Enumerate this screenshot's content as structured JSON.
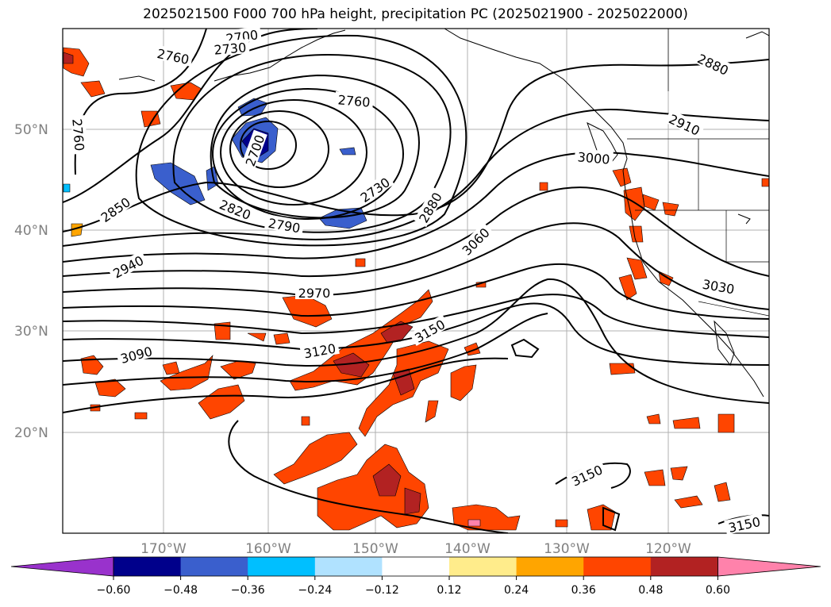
{
  "title": "2025021500 F000 700 hPa height, precipitation PC (2025021900 - 2025022000)",
  "map": {
    "lat_labels": [
      "50°N",
      "40°N",
      "30°N",
      "20°N"
    ],
    "lon_labels": [
      "170°W",
      "160°W",
      "150°W",
      "140°W",
      "130°W",
      "120°W"
    ],
    "contour_labels": [
      {
        "text": "2700"
      },
      {
        "text": "2730"
      },
      {
        "text": "2760"
      },
      {
        "text": "2880"
      },
      {
        "text": "2760"
      },
      {
        "text": "2760"
      },
      {
        "text": "2910"
      },
      {
        "text": "2700"
      },
      {
        "text": "3000"
      },
      {
        "text": "2730"
      },
      {
        "text": "2850"
      },
      {
        "text": "2820"
      },
      {
        "text": "2790"
      },
      {
        "text": "2880"
      },
      {
        "text": "3060"
      },
      {
        "text": "2940"
      },
      {
        "text": "3030"
      },
      {
        "text": "2970"
      },
      {
        "text": "3150"
      },
      {
        "text": "3120"
      },
      {
        "text": "3090"
      },
      {
        "text": "3150"
      },
      {
        "text": "3150"
      }
    ]
  },
  "colorbar": {
    "ticks": [
      "−0.60",
      "−0.48",
      "−0.36",
      "−0.24",
      "−0.12",
      "0.12",
      "0.24",
      "0.36",
      "0.48",
      "0.60"
    ],
    "colors": [
      "#9932cc",
      "#00008b",
      "#3a5fcd",
      "#00bfff",
      "#b0e2ff",
      "#ffffff",
      "#ffec8b",
      "#ffa500",
      "#ff4500",
      "#b22222",
      "#ff82ab"
    ]
  }
}
